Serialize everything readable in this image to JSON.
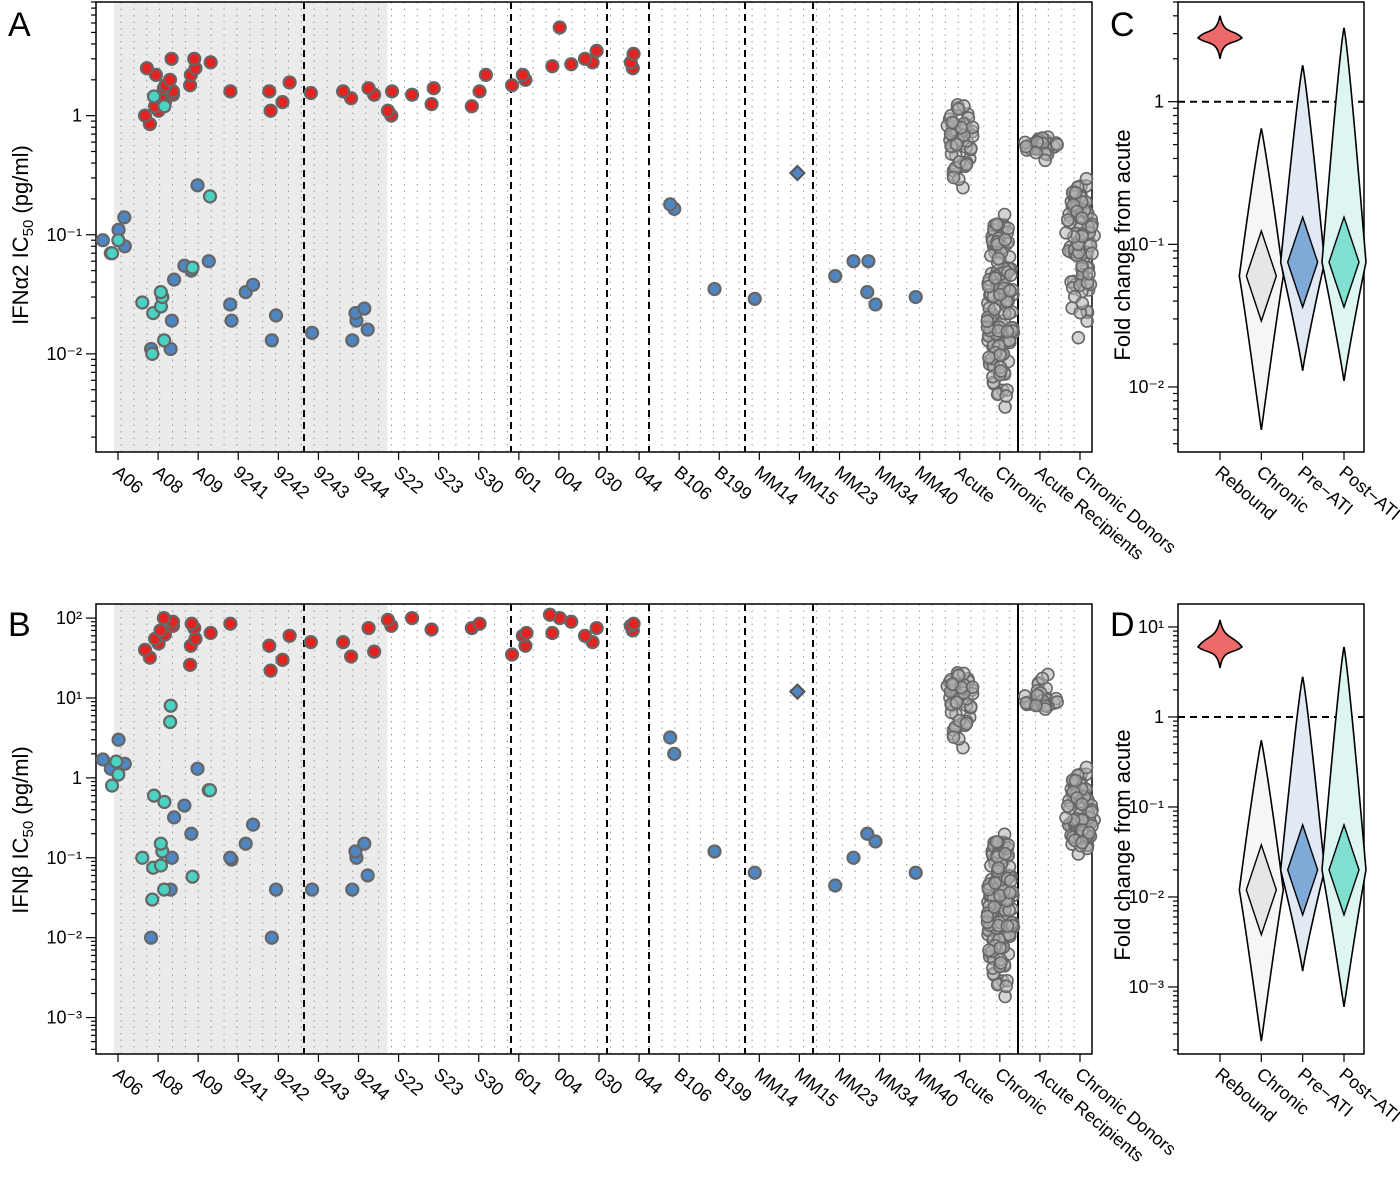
{
  "colors": {
    "red": "#e4221f",
    "blue": "#4f86c2",
    "cyan": "#4ad2c2",
    "grey": "#b0b0b0",
    "shade": "#ebebeb",
    "rebound_violin": "#ee6a6a",
    "chronic_violin": "#e6e6e6",
    "preati_violin": "#7fa9d6",
    "postati_violin": "#7fe0d2",
    "preati_outer": "#e0e9f4",
    "postati_outer": "#ddf6f2",
    "chronic_outer": "#f6f6f6"
  },
  "categories": [
    "A06",
    "A08",
    "A09",
    "9241",
    "9242",
    "9243",
    "9244",
    "S22",
    "S23",
    "S30",
    "601",
    "004",
    "030",
    "044",
    "B106",
    "B199",
    "MM14",
    "MM15",
    "MM23",
    "MM34",
    "MM40",
    "Acute",
    "Chronic",
    "Acute Recipients",
    "Chronic Donors"
  ],
  "panels": {
    "A": {
      "letter": "A",
      "ylabel": "IFNα2 IC",
      "ylabel_sub": "50",
      "ylabel_unit": " (pg/ml)",
      "yticks": [
        "10⁻²",
        "10⁻¹",
        "1"
      ]
    },
    "B": {
      "letter": "B",
      "ylabel": "IFNβ IC",
      "ylabel_sub": "50",
      "ylabel_unit": " (pg/ml)",
      "yticks": [
        "10⁻³",
        "10⁻²",
        "10⁻¹",
        "1",
        "10¹",
        "10²"
      ]
    },
    "C": {
      "letter": "C",
      "ylabel": "Fold change from acute",
      "yticks": [
        "10⁻²",
        "10⁻¹",
        "1"
      ]
    },
    "D": {
      "letter": "D",
      "ylabel": "Fold change from acute",
      "yticks": [
        "10⁻³",
        "10⁻²",
        "10⁻¹",
        "1",
        "10¹"
      ]
    }
  },
  "violin_categories": [
    "Rebound",
    "Chronic",
    "Pre−ATI",
    "Post−ATI"
  ],
  "chart_data": [
    {
      "panel": "A",
      "type": "scatter",
      "ylabel": "IFNα2 IC50 (pg/ml)",
      "yscale": "log",
      "ylim": [
        0.0015,
        9
      ],
      "categories": [
        "A06",
        "A08",
        "A09",
        "9241",
        "9242",
        "9243",
        "9244",
        "S22",
        "S23",
        "S30",
        "601",
        "004",
        "030",
        "044",
        "B106",
        "B199",
        "MM14",
        "MM15",
        "MM23",
        "MM34",
        "MM40",
        "Acute",
        "Chronic",
        "Acute Recipients",
        "Chronic Donors"
      ],
      "series": [
        {
          "name": "rebound",
          "color": "red",
          "points": [
            [
              "A08",
              [
                0.85,
                1.0,
                1.1,
                1.2,
                1.3,
                1.4,
                1.5,
                1.6,
                1.7,
                1.8,
                2.0,
                2.2,
                2.5,
                3.0
              ]
            ],
            [
              "A09",
              [
                1.8,
                2.2,
                2.5,
                2.8,
                3.0
              ]
            ],
            [
              "9241",
              [
                1.6
              ]
            ],
            [
              "9242",
              [
                1.1,
                1.3,
                1.6,
                1.9
              ]
            ],
            [
              "9243",
              [
                1.55
              ]
            ],
            [
              "9244",
              [
                1.4,
                1.5,
                1.6,
                1.7
              ]
            ],
            [
              "S22",
              [
                1.0,
                1.1,
                1.5,
                1.6
              ]
            ],
            [
              "S23",
              [
                1.25,
                1.7
              ]
            ],
            [
              "S30",
              [
                1.2,
                1.6,
                2.2
              ]
            ],
            [
              "601",
              [
                1.8,
                2.0,
                2.2
              ]
            ],
            [
              "004",
              [
                2.6,
                2.7,
                5.5
              ]
            ],
            [
              "030",
              [
                2.8,
                3.0,
                3.5
              ]
            ],
            [
              "044",
              [
                2.5,
                2.8,
                3.3
              ]
            ]
          ]
        },
        {
          "name": "pre-ATI",
          "color": "blue",
          "points": [
            [
              "A06",
              [
                0.07,
                0.08,
                0.09,
                0.11,
                0.14
              ]
            ],
            [
              "A08",
              [
                0.011,
                0.011,
                0.019,
                0.042
              ]
            ],
            [
              "A09",
              [
                0.05,
                0.055,
                0.06,
                0.26
              ]
            ],
            [
              "9241",
              [
                0.019,
                0.026,
                0.033,
                0.038
              ]
            ],
            [
              "9242",
              [
                0.013,
                0.021
              ]
            ],
            [
              "9243",
              [
                0.015
              ]
            ],
            [
              "9244",
              [
                0.013,
                0.016,
                0.019,
                0.022,
                0.024
              ]
            ],
            [
              "B106",
              [
                0.165,
                0.18
              ]
            ],
            [
              "B199",
              [
                0.035
              ]
            ],
            [
              "MM14",
              [
                0.029
              ]
            ],
            [
              "MM23",
              [
                0.045,
                0.06
              ]
            ],
            [
              "MM34",
              [
                0.026,
                0.033,
                0.06
              ]
            ],
            [
              "MM40",
              [
                0.03
              ]
            ]
          ]
        },
        {
          "name": "post-ATI",
          "color": "cyan",
          "points": [
            [
              "A06",
              [
                0.07,
                0.09
              ]
            ],
            [
              "A08",
              [
                0.01,
                0.013,
                0.022,
                0.025,
                0.027,
                0.03,
                0.033,
                1.2,
                1.45
              ]
            ],
            [
              "A09",
              [
                0.053,
                0.21
              ]
            ]
          ]
        },
        {
          "name": "",
          "color": "blue",
          "marker": "diamond",
          "points": [
            [
              "MM15",
              [
                0.33
              ]
            ]
          ]
        },
        {
          "name": "Acute",
          "color": "grey",
          "summary": {
            "min": 0.2,
            "max": 1.5,
            "median": 0.7
          }
        },
        {
          "name": "Chronic",
          "color": "grey",
          "summary": {
            "min": 0.0016,
            "max": 0.45,
            "median": 0.02
          }
        },
        {
          "name": "Acute Recipients",
          "color": "grey",
          "summary": {
            "min": 0.4,
            "max": 0.7,
            "median": 0.58
          }
        },
        {
          "name": "Chronic Donors",
          "color": "grey",
          "summary": {
            "min": 0.007,
            "max": 0.5,
            "median": 0.1
          }
        }
      ]
    },
    {
      "panel": "B",
      "type": "scatter",
      "ylabel": "IFNβ IC50 (pg/ml)",
      "yscale": "log",
      "ylim": [
        0.00035,
        150
      ],
      "categories": [
        "A06",
        "A08",
        "A09",
        "9241",
        "9242",
        "9243",
        "9244",
        "S22",
        "S23",
        "S30",
        "601",
        "004",
        "030",
        "044",
        "B106",
        "B199",
        "MM14",
        "MM15",
        "MM23",
        "MM34",
        "MM40",
        "Acute",
        "Chronic",
        "Acute Recipients",
        "Chronic Donors"
      ],
      "series": [
        {
          "name": "rebound",
          "color": "red",
          "points": [
            [
              "A08",
              [
                32,
                40,
                48,
                55,
                62,
                70,
                80,
                90,
                100
              ]
            ],
            [
              "A09",
              [
                26,
                45,
                55,
                65,
                75,
                85
              ]
            ],
            [
              "9241",
              [
                85
              ]
            ],
            [
              "9242",
              [
                22,
                30,
                45,
                60
              ]
            ],
            [
              "9243",
              [
                50
              ]
            ],
            [
              "9244",
              [
                33,
                38,
                50,
                75
              ]
            ],
            [
              "S22",
              [
                80,
                95,
                100
              ]
            ],
            [
              "S23",
              [
                72
              ]
            ],
            [
              "S30",
              [
                75,
                85
              ]
            ],
            [
              "601",
              [
                35,
                45,
                60,
                65
              ]
            ],
            [
              "004",
              [
                65,
                90,
                100,
                110
              ]
            ],
            [
              "030",
              [
                50,
                60,
                75
              ]
            ],
            [
              "044",
              [
                70,
                80,
                85
              ]
            ]
          ]
        },
        {
          "name": "pre-ATI",
          "color": "blue",
          "points": [
            [
              "A06",
              [
                1.3,
                1.5,
                1.7,
                3.0
              ]
            ],
            [
              "A08",
              [
                0.01,
                0.04,
                0.1,
                0.32
              ]
            ],
            [
              "A09",
              [
                0.2,
                0.45,
                0.7,
                1.3
              ]
            ],
            [
              "9241",
              [
                0.095,
                0.1,
                0.15,
                0.26
              ]
            ],
            [
              "9242",
              [
                0.01,
                0.04
              ]
            ],
            [
              "9243",
              [
                0.04
              ]
            ],
            [
              "9244",
              [
                0.04,
                0.06,
                0.1,
                0.12,
                0.15
              ]
            ],
            [
              "B106",
              [
                2.0,
                3.2
              ]
            ],
            [
              "B199",
              [
                0.12
              ]
            ],
            [
              "MM14",
              [
                0.065
              ]
            ],
            [
              "MM23",
              [
                0.045,
                0.1
              ]
            ],
            [
              "MM34",
              [
                0.16,
                0.2
              ]
            ],
            [
              "MM40",
              [
                0.065
              ]
            ]
          ]
        },
        {
          "name": "post-ATI",
          "color": "cyan",
          "points": [
            [
              "A06",
              [
                0.8,
                1.1,
                1.6
              ]
            ],
            [
              "A08",
              [
                0.03,
                0.04,
                0.075,
                0.08,
                0.1,
                0.12,
                0.15,
                0.5,
                0.6,
                5.0,
                8.0
              ]
            ],
            [
              "A09",
              [
                0.058,
                0.7
              ]
            ]
          ]
        },
        {
          "name": "",
          "color": "blue",
          "marker": "diamond",
          "points": [
            [
              "MM15",
              [
                12
              ]
            ]
          ]
        },
        {
          "name": "Acute",
          "color": "grey",
          "summary": {
            "min": 1.7,
            "max": 25,
            "median": 12
          }
        },
        {
          "name": "Chronic",
          "color": "grey",
          "summary": {
            "min": 0.0006,
            "max": 0.7,
            "median": 0.02
          }
        },
        {
          "name": "Acute Recipients",
          "color": "grey",
          "summary": {
            "min": 7,
            "max": 28,
            "median": 9
          }
        },
        {
          "name": "Chronic Donors",
          "color": "grey",
          "summary": {
            "min": 0.08,
            "max": 2.8,
            "median": 0.3
          }
        }
      ]
    },
    {
      "panel": "C",
      "type": "violin",
      "ylabel": "Fold change from acute",
      "yscale": "log",
      "ylim": [
        0.0035,
        5
      ],
      "reference_line": 1,
      "categories": [
        "Rebound",
        "Chronic",
        "Pre−ATI",
        "Post−ATI"
      ],
      "series": [
        {
          "name": "Rebound",
          "min": 2.0,
          "max": 4.0,
          "median": 2.8
        },
        {
          "name": "Chronic",
          "min": 0.005,
          "max": 0.65,
          "median": 0.06
        },
        {
          "name": "Pre−ATI",
          "min": 0.013,
          "max": 1.8,
          "median": 0.075
        },
        {
          "name": "Post−ATI",
          "min": 0.011,
          "max": 3.3,
          "median": 0.075
        }
      ]
    },
    {
      "panel": "D",
      "type": "violin",
      "ylabel": "Fold change from acute",
      "yscale": "log",
      "ylim": [
        0.00018,
        18
      ],
      "reference_line": 1,
      "categories": [
        "Rebound",
        "Chronic",
        "Pre−ATI",
        "Post−ATI"
      ],
      "series": [
        {
          "name": "Rebound",
          "min": 3.5,
          "max": 12,
          "median": 6
        },
        {
          "name": "Chronic",
          "min": 0.00025,
          "max": 0.55,
          "median": 0.012
        },
        {
          "name": "Pre−ATI",
          "min": 0.0015,
          "max": 2.8,
          "median": 0.02
        },
        {
          "name": "Post−ATI",
          "min": 0.0006,
          "max": 6.0,
          "median": 0.02
        }
      ]
    }
  ]
}
